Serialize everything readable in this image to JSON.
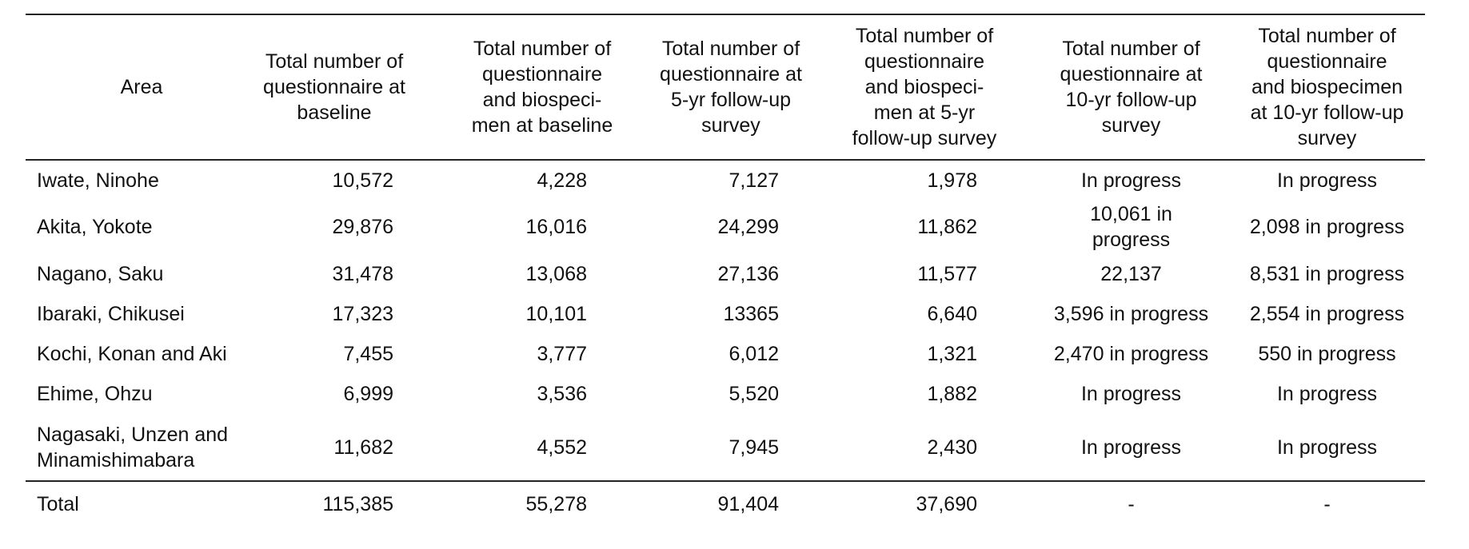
{
  "headers": {
    "area": "Area",
    "q_baseline": [
      "Total number of",
      "questionnaire at",
      "baseline"
    ],
    "qb_baseline": [
      "Total number of",
      "questionnaire",
      "and biospeci-",
      "men at baseline"
    ],
    "q_5yr": [
      "Total number of",
      "questionnaire at",
      "5-yr follow-up",
      "survey"
    ],
    "qb_5yr": [
      "Total number of",
      "questionnaire",
      "and biospeci-",
      "men at 5-yr",
      "follow-up survey"
    ],
    "q_10yr": [
      "Total number of",
      "questionnaire  at",
      "10-yr follow-up",
      "survey"
    ],
    "qb_10yr": [
      "Total number of",
      "questionnaire",
      "and biospecimen",
      "at 10-yr follow-up",
      "survey"
    ]
  },
  "rows": [
    {
      "area": [
        "Iwate, Ninohe"
      ],
      "q_baseline": "10,572",
      "qb_baseline": "4,228",
      "q_5yr": "7,127",
      "qb_5yr": "1,978",
      "q_10yr": [
        "In progress"
      ],
      "qb_10yr": "In progress"
    },
    {
      "area": [
        "Akita, Yokote"
      ],
      "q_baseline": "29,876",
      "qb_baseline": "16,016",
      "q_5yr": "24,299",
      "qb_5yr": "11,862",
      "q_10yr": [
        "10,061 in",
        "progress"
      ],
      "qb_10yr": "2,098 in progress"
    },
    {
      "area": [
        "Nagano, Saku"
      ],
      "q_baseline": "31,478",
      "qb_baseline": "13,068",
      "q_5yr": "27,136",
      "qb_5yr": "11,577",
      "q_10yr": [
        "22,137"
      ],
      "qb_10yr": "8,531 in progress"
    },
    {
      "area": [
        "Ibaraki, Chikusei"
      ],
      "q_baseline": "17,323",
      "qb_baseline": "10,101",
      "q_5yr": "13365",
      "qb_5yr": "6,640",
      "q_10yr": [
        "3,596 in progress"
      ],
      "qb_10yr": "2,554 in progress"
    },
    {
      "area": [
        "Kochi, Konan and Aki"
      ],
      "q_baseline": "7,455",
      "qb_baseline": "3,777",
      "q_5yr": "6,012",
      "qb_5yr": "1,321",
      "q_10yr": [
        "2,470 in progress"
      ],
      "qb_10yr": "550 in progress"
    },
    {
      "area": [
        "Ehime, Ohzu"
      ],
      "q_baseline": "6,999",
      "qb_baseline": "3,536",
      "q_5yr": "5,520",
      "qb_5yr": "1,882",
      "q_10yr": [
        "In progress"
      ],
      "qb_10yr": "In progress"
    },
    {
      "area": [
        "Nagasaki, Unzen and",
        "Minamishimabara"
      ],
      "q_baseline": "11,682",
      "qb_baseline": "4,552",
      "q_5yr": "7,945",
      "qb_5yr": "2,430",
      "q_10yr": [
        "In progress"
      ],
      "qb_10yr": "In progress"
    }
  ],
  "total": {
    "area": "Total",
    "q_baseline": "115,385",
    "qb_baseline": "55,278",
    "q_5yr": "91,404",
    "qb_5yr": "37,690",
    "q_10yr": "-",
    "qb_10yr": "-"
  }
}
